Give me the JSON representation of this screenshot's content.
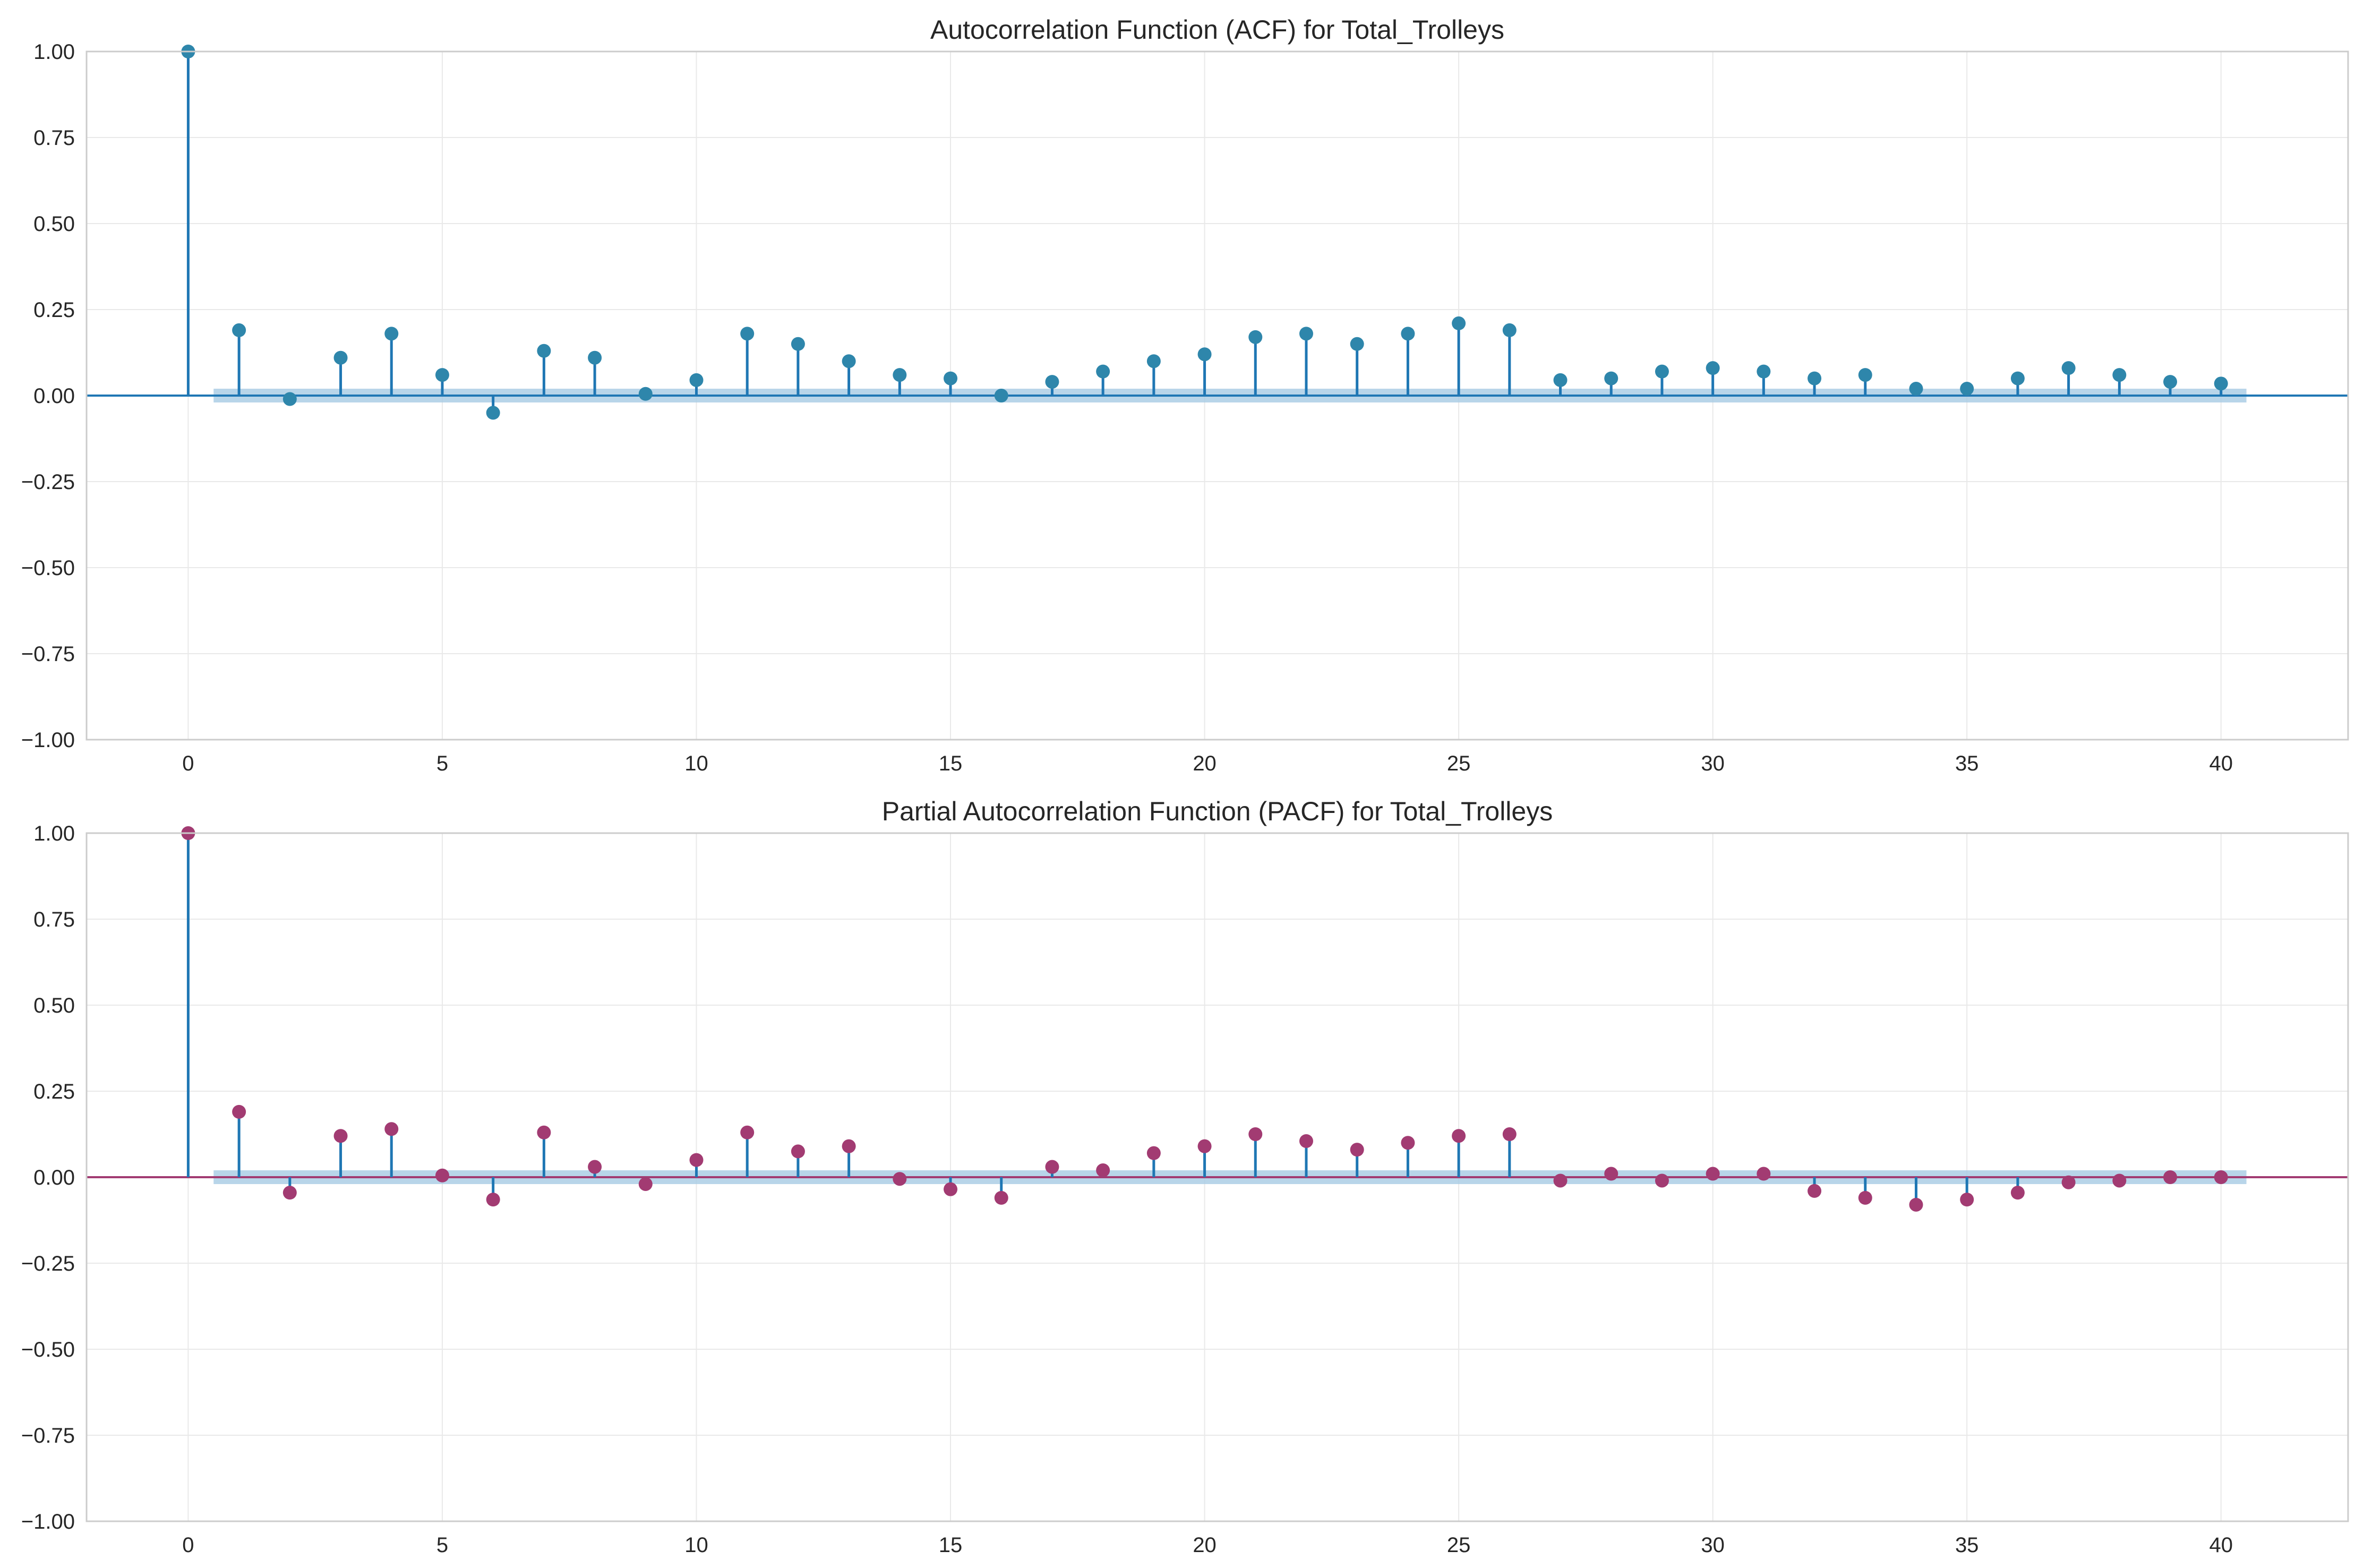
{
  "colors": {
    "acf_marker": "#2e86ab",
    "pacf_marker": "#a23b72",
    "stem": "#1f77b4",
    "band": "#a6cbe3",
    "grid": "#e9e9e9",
    "axes_edge": "#cccccc",
    "text": "#262626"
  },
  "chart_data": [
    {
      "type": "stem",
      "title": "Autocorrelation Function (ACF) for Total_Trolleys",
      "xlabel": "",
      "ylabel": "",
      "xlim": [
        -2,
        42.5
      ],
      "ylim": [
        -1.0,
        1.0
      ],
      "x_ticks": [
        0,
        5,
        10,
        15,
        20,
        25,
        30,
        35,
        40
      ],
      "y_ticks": [
        "-1.00",
        "-0.75",
        "-0.50",
        "-0.25",
        "0.00",
        "0.25",
        "0.50",
        "0.75",
        "1.00"
      ],
      "grid": true,
      "lags": [
        0,
        1,
        2,
        3,
        4,
        5,
        6,
        7,
        8,
        9,
        10,
        11,
        12,
        13,
        14,
        15,
        16,
        17,
        18,
        19,
        20,
        21,
        22,
        23,
        24,
        25,
        26,
        27,
        28,
        29,
        30,
        31,
        32,
        33,
        34,
        35,
        36,
        37,
        38,
        39,
        40
      ],
      "values": [
        1.0,
        0.19,
        -0.01,
        0.11,
        0.18,
        0.06,
        -0.05,
        0.13,
        0.11,
        0.005,
        0.045,
        0.18,
        0.15,
        0.1,
        0.06,
        0.05,
        0.0,
        0.04,
        0.07,
        0.1,
        0.12,
        0.17,
        0.18,
        0.15,
        0.18,
        0.21,
        0.19,
        0.045,
        0.05,
        0.07,
        0.08,
        0.07,
        0.05,
        0.06,
        0.02,
        0.02,
        0.05,
        0.08,
        0.06,
        0.04,
        0.035
      ],
      "confidence_band": 0.02,
      "band_range": [
        0.5,
        40.5
      ]
    },
    {
      "type": "stem",
      "title": "Partial Autocorrelation Function (PACF) for Total_Trolleys",
      "xlabel": "",
      "ylabel": "",
      "xlim": [
        -2,
        42.5
      ],
      "ylim": [
        -1.0,
        1.0
      ],
      "x_ticks": [
        0,
        5,
        10,
        15,
        20,
        25,
        30,
        35,
        40
      ],
      "y_ticks": [
        "-1.00",
        "-0.75",
        "-0.50",
        "-0.25",
        "0.00",
        "0.25",
        "0.50",
        "0.75",
        "1.00"
      ],
      "grid": true,
      "lags": [
        0,
        1,
        2,
        3,
        4,
        5,
        6,
        7,
        8,
        9,
        10,
        11,
        12,
        13,
        14,
        15,
        16,
        17,
        18,
        19,
        20,
        21,
        22,
        23,
        24,
        25,
        26,
        27,
        28,
        29,
        30,
        31,
        32,
        33,
        34,
        35,
        36,
        37,
        38,
        39,
        40
      ],
      "values": [
        1.0,
        0.19,
        -0.045,
        0.12,
        0.14,
        0.005,
        -0.065,
        0.13,
        0.03,
        -0.02,
        0.05,
        0.13,
        0.075,
        0.09,
        -0.005,
        -0.035,
        -0.06,
        0.03,
        0.02,
        0.07,
        0.09,
        0.125,
        0.105,
        0.08,
        0.1,
        0.12,
        0.125,
        -0.01,
        0.01,
        -0.01,
        0.01,
        0.01,
        -0.04,
        -0.06,
        -0.08,
        -0.065,
        -0.045,
        -0.015,
        -0.01,
        0.0,
        0.0
      ],
      "confidence_band": 0.02,
      "band_range": [
        0.5,
        40.5
      ]
    }
  ]
}
